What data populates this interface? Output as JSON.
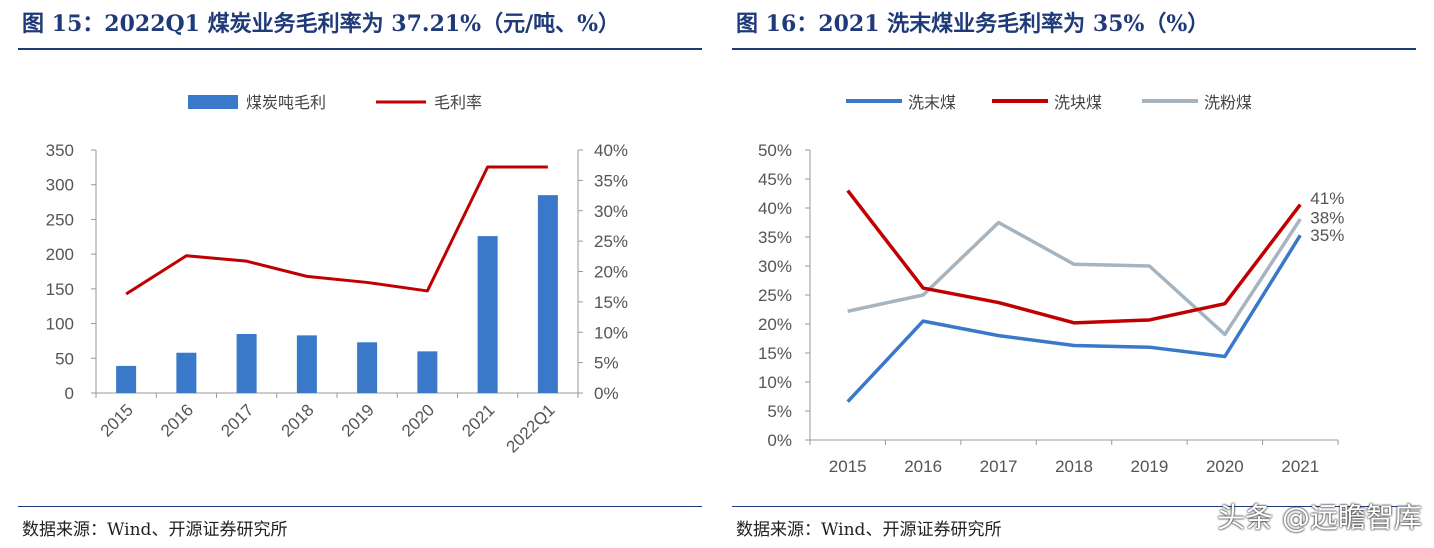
{
  "left": {
    "title": "图 15：2022Q1 煤炭业务毛利率为 37.21%（元/吨、%）",
    "source": "数据来源：Wind、开源证券研究所",
    "chart_data": {
      "type": "bar",
      "categories": [
        "2015",
        "2016",
        "2017",
        "2018",
        "2019",
        "2020",
        "2021",
        "2022Q1"
      ],
      "series": [
        {
          "name": "煤炭吨毛利",
          "type": "bar",
          "axis": "left",
          "color": "#3a78c9",
          "values": [
            39,
            58,
            85,
            83,
            73,
            60,
            226,
            285
          ]
        },
        {
          "name": "毛利率",
          "type": "line",
          "axis": "right",
          "color": "#c00000",
          "values": [
            16.3,
            22.6,
            21.7,
            19.2,
            18.2,
            16.8,
            37.2,
            37.21
          ]
        }
      ],
      "y_left": {
        "min": 0,
        "max": 350,
        "ticks": [
          "0",
          "50",
          "100",
          "150",
          "200",
          "250",
          "300",
          "350"
        ]
      },
      "y_right": {
        "min": 0,
        "max": 40,
        "ticks": [
          "0%",
          "5%",
          "10%",
          "15%",
          "20%",
          "25%",
          "30%",
          "35%",
          "40%"
        ]
      },
      "legend_position": "top"
    }
  },
  "right": {
    "title": "图 16：2021 洗末煤业务毛利率为 35%（%）",
    "source": "数据来源：Wind、开源证券研究所",
    "chart_data": {
      "type": "line",
      "categories": [
        "2015",
        "2016",
        "2017",
        "2018",
        "2019",
        "2020",
        "2021"
      ],
      "series": [
        {
          "name": "洗末煤",
          "color": "#3a78c9",
          "values": [
            6.6,
            20.5,
            18.0,
            16.3,
            16.0,
            14.4,
            35.3
          ]
        },
        {
          "name": "洗块煤",
          "color": "#c00000",
          "values": [
            43.0,
            26.2,
            23.7,
            20.2,
            20.7,
            23.5,
            40.6
          ]
        },
        {
          "name": "洗粉煤",
          "color": "#a5b4bf",
          "values": [
            22.2,
            25.0,
            37.5,
            30.3,
            30.0,
            18.2,
            38.1
          ]
        }
      ],
      "end_labels": [
        "41%",
        "38%",
        "35%"
      ],
      "y": {
        "min": 0,
        "max": 50,
        "ticks": [
          "0%",
          "5%",
          "10%",
          "15%",
          "20%",
          "25%",
          "30%",
          "35%",
          "40%",
          "45%",
          "50%"
        ]
      },
      "legend_position": "top"
    }
  },
  "watermark": "头条 @远瞻智库"
}
